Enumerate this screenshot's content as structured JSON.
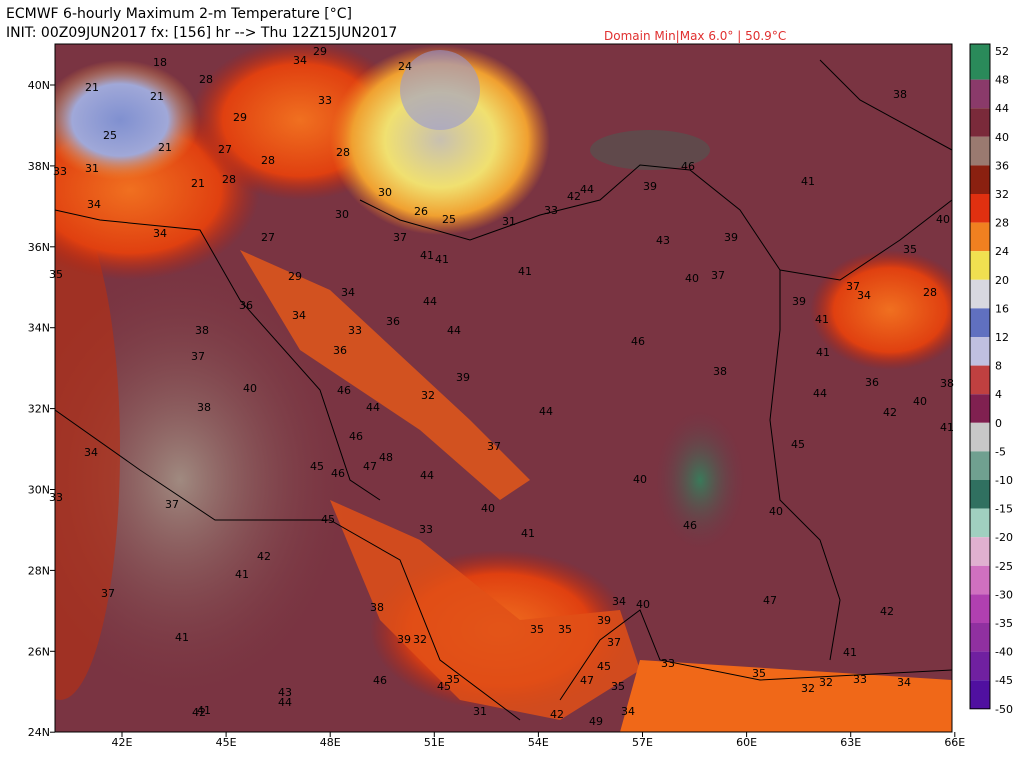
{
  "header": {
    "title": "ECMWF 6-hourly Maximum 2-m Temperature [°C]",
    "init": "INIT: 00Z09JUN2017 fx: [156] hr --> Thu 12Z15JUN2017",
    "domain": "Domain Min|Max 6.0° | 50.9°C"
  },
  "map": {
    "lat_labels": [
      "40N",
      "38N",
      "36N",
      "34N",
      "32N",
      "30N",
      "28N",
      "26N",
      "24N"
    ],
    "lon_labels": [
      "42E",
      "45E",
      "48E",
      "51E",
      "54E",
      "57E",
      "60E",
      "63E",
      "66E"
    ],
    "labels": [
      "18",
      "21",
      "21",
      "28",
      "29",
      "25",
      "21",
      "27",
      "28",
      "28",
      "21",
      "33",
      "31",
      "34",
      "34",
      "29",
      "34",
      "33",
      "28",
      "24",
      "30",
      "30",
      "26",
      "25",
      "31",
      "33",
      "42",
      "44",
      "39",
      "46",
      "43",
      "39",
      "40",
      "37",
      "41",
      "38",
      "40",
      "35",
      "37",
      "34",
      "28",
      "39",
      "41",
      "41",
      "36",
      "38",
      "44",
      "42",
      "40",
      "41",
      "45",
      "40",
      "47",
      "42",
      "41",
      "37",
      "41",
      "41",
      "41",
      "27",
      "29",
      "34",
      "34",
      "36",
      "33",
      "36",
      "44",
      "44",
      "36",
      "39",
      "32",
      "46",
      "44",
      "46",
      "44",
      "46",
      "38",
      "37",
      "48",
      "47",
      "46",
      "45",
      "44",
      "40",
      "41",
      "40",
      "46",
      "45",
      "33",
      "35",
      "38",
      "37",
      "40",
      "38",
      "34",
      "33",
      "37",
      "42",
      "41",
      "37",
      "41",
      "38",
      "39",
      "32",
      "46",
      "43",
      "44",
      "42",
      "41",
      "35",
      "35",
      "39",
      "34",
      "40",
      "37",
      "45",
      "47",
      "35",
      "35",
      "45",
      "31",
      "42",
      "49",
      "34",
      "33",
      "35",
      "32",
      "32",
      "33",
      "34"
    ]
  },
  "colorbar": {
    "labels": [
      "52",
      "48",
      "44",
      "40",
      "36",
      "32",
      "28",
      "24",
      "20",
      "16",
      "12",
      "8",
      "4",
      "0",
      "-5",
      "-10",
      "-15",
      "-20",
      "-25",
      "-30",
      "-35",
      "-40",
      "-45",
      "-50"
    ],
    "colors": [
      "#2a8a5a",
      "#8a3a6a",
      "#7a2a3a",
      "#9a7a70",
      "#8a2010",
      "#e03010",
      "#f08020",
      "#f0e050",
      "#d8d8e0",
      "#6070c0",
      "#c0c0e0",
      "#c04040",
      "#802050",
      "#c8c8c8",
      "#70a090",
      "#307060",
      "#a0d0c0",
      "#e0b0d0",
      "#d070c0",
      "#b040b0",
      "#9030a0",
      "#7020a0",
      "#5010a0"
    ]
  }
}
